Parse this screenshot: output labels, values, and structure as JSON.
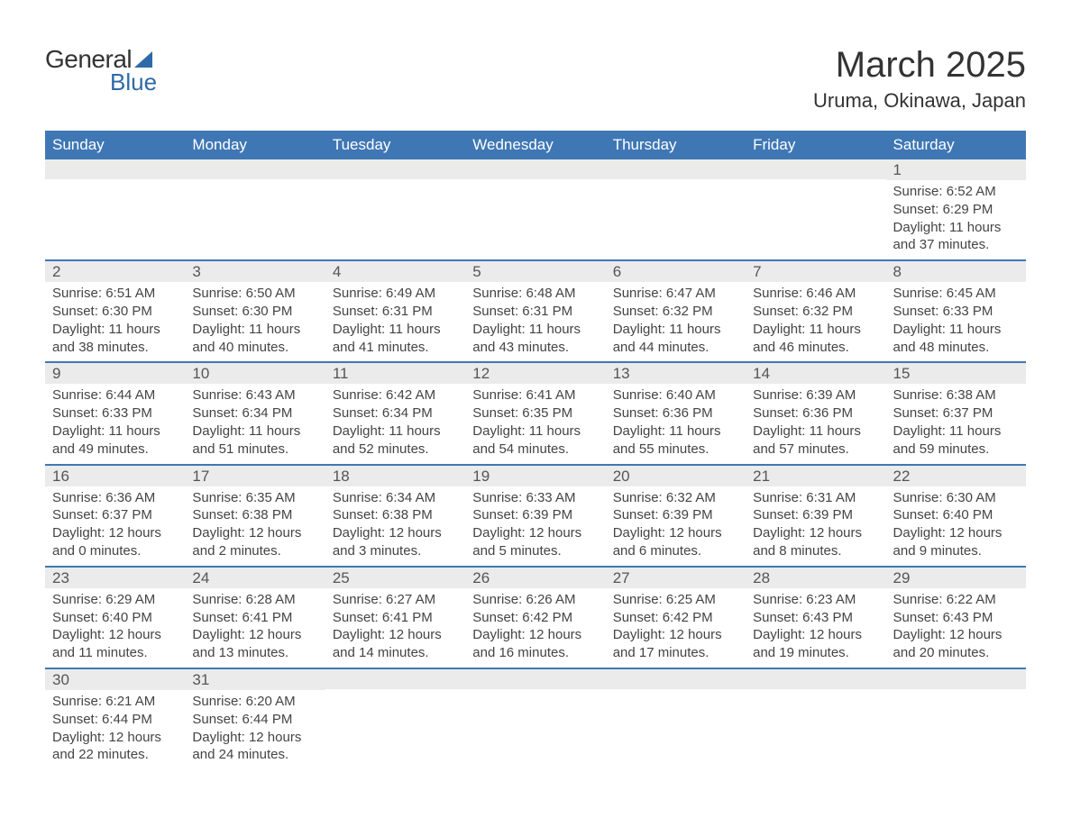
{
  "logo": {
    "text1": "General",
    "text2": "Blue"
  },
  "title": "March 2025",
  "location": "Uruma, Okinawa, Japan",
  "colors": {
    "header_bg": "#3f77b4",
    "header_text": "#ffffff",
    "daynum_bg": "#ebebeb",
    "border": "#3f77b4",
    "logo_accent": "#2e6aa8",
    "page_bg": "#ffffff",
    "body_text": "#444444"
  },
  "typography": {
    "title_fontsize": 40,
    "location_fontsize": 22,
    "dow_fontsize": 17,
    "daynum_fontsize": 17,
    "body_fontsize": 15
  },
  "days_of_week": [
    "Sunday",
    "Monday",
    "Tuesday",
    "Wednesday",
    "Thursday",
    "Friday",
    "Saturday"
  ],
  "weeks": [
    [
      {
        "n": "",
        "sunrise": "",
        "sunset": "",
        "daylight": ""
      },
      {
        "n": "",
        "sunrise": "",
        "sunset": "",
        "daylight": ""
      },
      {
        "n": "",
        "sunrise": "",
        "sunset": "",
        "daylight": ""
      },
      {
        "n": "",
        "sunrise": "",
        "sunset": "",
        "daylight": ""
      },
      {
        "n": "",
        "sunrise": "",
        "sunset": "",
        "daylight": ""
      },
      {
        "n": "",
        "sunrise": "",
        "sunset": "",
        "daylight": ""
      },
      {
        "n": "1",
        "sunrise": "Sunrise: 6:52 AM",
        "sunset": "Sunset: 6:29 PM",
        "daylight": "Daylight: 11 hours and 37 minutes."
      }
    ],
    [
      {
        "n": "2",
        "sunrise": "Sunrise: 6:51 AM",
        "sunset": "Sunset: 6:30 PM",
        "daylight": "Daylight: 11 hours and 38 minutes."
      },
      {
        "n": "3",
        "sunrise": "Sunrise: 6:50 AM",
        "sunset": "Sunset: 6:30 PM",
        "daylight": "Daylight: 11 hours and 40 minutes."
      },
      {
        "n": "4",
        "sunrise": "Sunrise: 6:49 AM",
        "sunset": "Sunset: 6:31 PM",
        "daylight": "Daylight: 11 hours and 41 minutes."
      },
      {
        "n": "5",
        "sunrise": "Sunrise: 6:48 AM",
        "sunset": "Sunset: 6:31 PM",
        "daylight": "Daylight: 11 hours and 43 minutes."
      },
      {
        "n": "6",
        "sunrise": "Sunrise: 6:47 AM",
        "sunset": "Sunset: 6:32 PM",
        "daylight": "Daylight: 11 hours and 44 minutes."
      },
      {
        "n": "7",
        "sunrise": "Sunrise: 6:46 AM",
        "sunset": "Sunset: 6:32 PM",
        "daylight": "Daylight: 11 hours and 46 minutes."
      },
      {
        "n": "8",
        "sunrise": "Sunrise: 6:45 AM",
        "sunset": "Sunset: 6:33 PM",
        "daylight": "Daylight: 11 hours and 48 minutes."
      }
    ],
    [
      {
        "n": "9",
        "sunrise": "Sunrise: 6:44 AM",
        "sunset": "Sunset: 6:33 PM",
        "daylight": "Daylight: 11 hours and 49 minutes."
      },
      {
        "n": "10",
        "sunrise": "Sunrise: 6:43 AM",
        "sunset": "Sunset: 6:34 PM",
        "daylight": "Daylight: 11 hours and 51 minutes."
      },
      {
        "n": "11",
        "sunrise": "Sunrise: 6:42 AM",
        "sunset": "Sunset: 6:34 PM",
        "daylight": "Daylight: 11 hours and 52 minutes."
      },
      {
        "n": "12",
        "sunrise": "Sunrise: 6:41 AM",
        "sunset": "Sunset: 6:35 PM",
        "daylight": "Daylight: 11 hours and 54 minutes."
      },
      {
        "n": "13",
        "sunrise": "Sunrise: 6:40 AM",
        "sunset": "Sunset: 6:36 PM",
        "daylight": "Daylight: 11 hours and 55 minutes."
      },
      {
        "n": "14",
        "sunrise": "Sunrise: 6:39 AM",
        "sunset": "Sunset: 6:36 PM",
        "daylight": "Daylight: 11 hours and 57 minutes."
      },
      {
        "n": "15",
        "sunrise": "Sunrise: 6:38 AM",
        "sunset": "Sunset: 6:37 PM",
        "daylight": "Daylight: 11 hours and 59 minutes."
      }
    ],
    [
      {
        "n": "16",
        "sunrise": "Sunrise: 6:36 AM",
        "sunset": "Sunset: 6:37 PM",
        "daylight": "Daylight: 12 hours and 0 minutes."
      },
      {
        "n": "17",
        "sunrise": "Sunrise: 6:35 AM",
        "sunset": "Sunset: 6:38 PM",
        "daylight": "Daylight: 12 hours and 2 minutes."
      },
      {
        "n": "18",
        "sunrise": "Sunrise: 6:34 AM",
        "sunset": "Sunset: 6:38 PM",
        "daylight": "Daylight: 12 hours and 3 minutes."
      },
      {
        "n": "19",
        "sunrise": "Sunrise: 6:33 AM",
        "sunset": "Sunset: 6:39 PM",
        "daylight": "Daylight: 12 hours and 5 minutes."
      },
      {
        "n": "20",
        "sunrise": "Sunrise: 6:32 AM",
        "sunset": "Sunset: 6:39 PM",
        "daylight": "Daylight: 12 hours and 6 minutes."
      },
      {
        "n": "21",
        "sunrise": "Sunrise: 6:31 AM",
        "sunset": "Sunset: 6:39 PM",
        "daylight": "Daylight: 12 hours and 8 minutes."
      },
      {
        "n": "22",
        "sunrise": "Sunrise: 6:30 AM",
        "sunset": "Sunset: 6:40 PM",
        "daylight": "Daylight: 12 hours and 9 minutes."
      }
    ],
    [
      {
        "n": "23",
        "sunrise": "Sunrise: 6:29 AM",
        "sunset": "Sunset: 6:40 PM",
        "daylight": "Daylight: 12 hours and 11 minutes."
      },
      {
        "n": "24",
        "sunrise": "Sunrise: 6:28 AM",
        "sunset": "Sunset: 6:41 PM",
        "daylight": "Daylight: 12 hours and 13 minutes."
      },
      {
        "n": "25",
        "sunrise": "Sunrise: 6:27 AM",
        "sunset": "Sunset: 6:41 PM",
        "daylight": "Daylight: 12 hours and 14 minutes."
      },
      {
        "n": "26",
        "sunrise": "Sunrise: 6:26 AM",
        "sunset": "Sunset: 6:42 PM",
        "daylight": "Daylight: 12 hours and 16 minutes."
      },
      {
        "n": "27",
        "sunrise": "Sunrise: 6:25 AM",
        "sunset": "Sunset: 6:42 PM",
        "daylight": "Daylight: 12 hours and 17 minutes."
      },
      {
        "n": "28",
        "sunrise": "Sunrise: 6:23 AM",
        "sunset": "Sunset: 6:43 PM",
        "daylight": "Daylight: 12 hours and 19 minutes."
      },
      {
        "n": "29",
        "sunrise": "Sunrise: 6:22 AM",
        "sunset": "Sunset: 6:43 PM",
        "daylight": "Daylight: 12 hours and 20 minutes."
      }
    ],
    [
      {
        "n": "30",
        "sunrise": "Sunrise: 6:21 AM",
        "sunset": "Sunset: 6:44 PM",
        "daylight": "Daylight: 12 hours and 22 minutes."
      },
      {
        "n": "31",
        "sunrise": "Sunrise: 6:20 AM",
        "sunset": "Sunset: 6:44 PM",
        "daylight": "Daylight: 12 hours and 24 minutes."
      },
      {
        "n": "",
        "sunrise": "",
        "sunset": "",
        "daylight": ""
      },
      {
        "n": "",
        "sunrise": "",
        "sunset": "",
        "daylight": ""
      },
      {
        "n": "",
        "sunrise": "",
        "sunset": "",
        "daylight": ""
      },
      {
        "n": "",
        "sunrise": "",
        "sunset": "",
        "daylight": ""
      },
      {
        "n": "",
        "sunrise": "",
        "sunset": "",
        "daylight": ""
      }
    ]
  ]
}
